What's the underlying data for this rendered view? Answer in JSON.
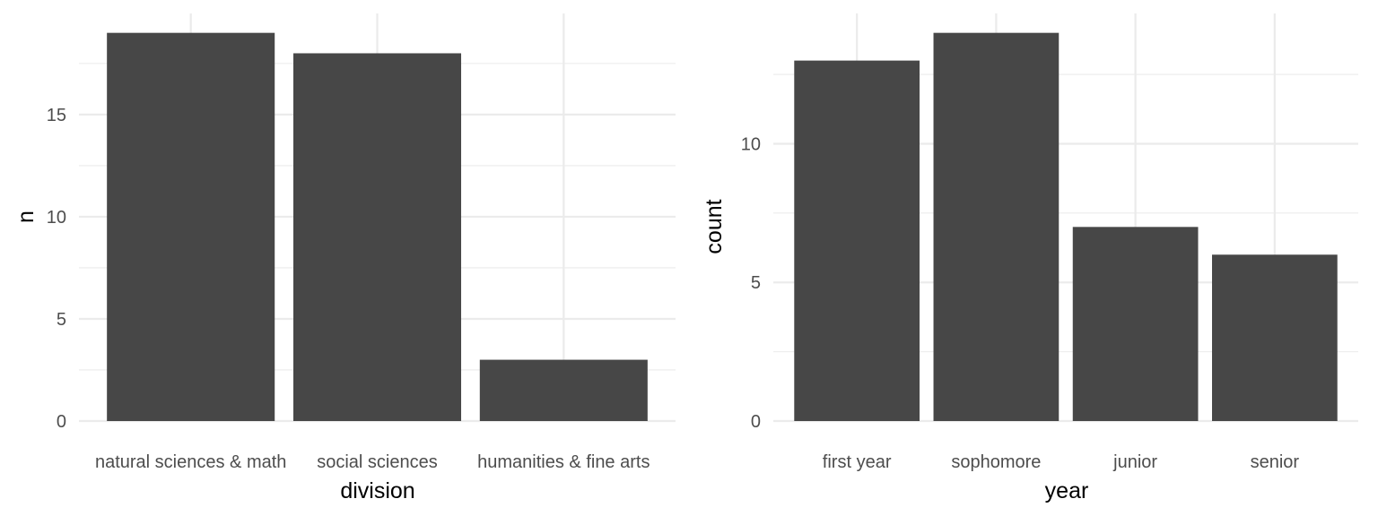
{
  "chart_data": [
    {
      "type": "bar",
      "xlabel": "division",
      "ylabel": "n",
      "categories": [
        "natural sciences & math",
        "social sciences",
        "humanities & fine arts"
      ],
      "values": [
        19,
        18,
        3
      ],
      "ylim": [
        0,
        19.95
      ],
      "yticks": [
        0,
        5,
        10,
        15
      ],
      "grid": true,
      "bar_color": "#474747",
      "grid_color": "#ebebeb"
    },
    {
      "type": "bar",
      "xlabel": "year",
      "ylabel": "count",
      "categories": [
        "first year",
        "sophomore",
        "junior",
        "senior"
      ],
      "values": [
        13,
        14,
        7,
        6
      ],
      "ylim": [
        0,
        14.7
      ],
      "yticks": [
        0,
        5,
        10
      ],
      "grid": true,
      "bar_color": "#474747",
      "grid_color": "#ebebeb"
    }
  ]
}
